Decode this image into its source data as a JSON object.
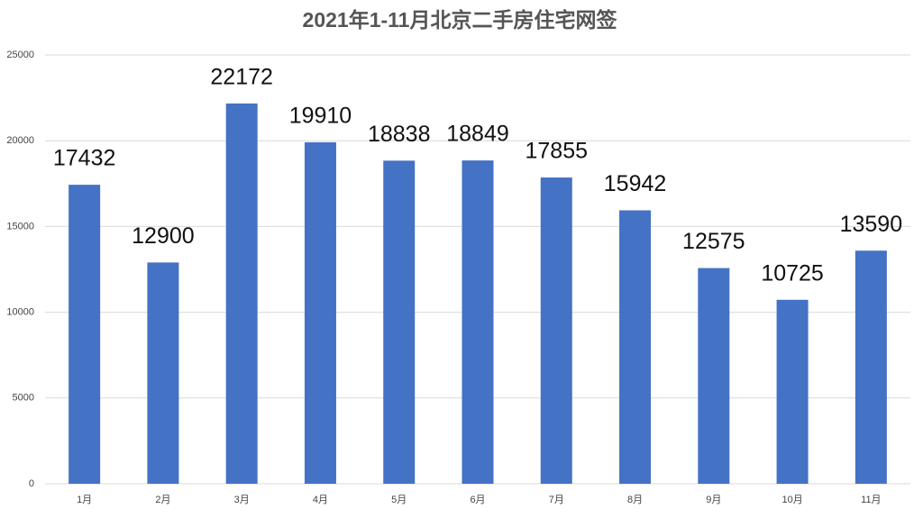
{
  "chart_data": {
    "type": "bar",
    "title": "2021年1-11月北京二手房住宅网签",
    "categories": [
      "1月",
      "2月",
      "3月",
      "4月",
      "5月",
      "6月",
      "7月",
      "8月",
      "9月",
      "10月",
      "11月"
    ],
    "values": [
      17432,
      12900,
      22172,
      19910,
      18838,
      18849,
      17855,
      15942,
      12575,
      10725,
      13590
    ],
    "color": "#4472c4",
    "ylim": [
      0,
      25000
    ],
    "yticks": [
      0,
      5000,
      10000,
      15000,
      20000,
      25000
    ],
    "grid": true
  }
}
